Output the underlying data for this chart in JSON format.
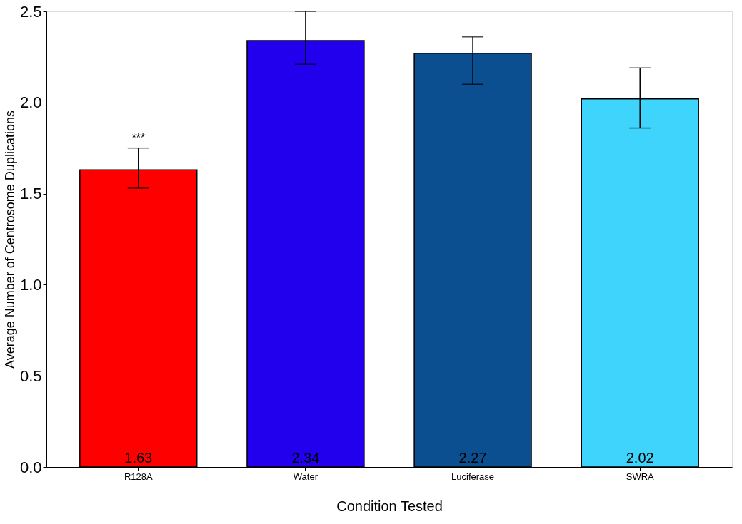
{
  "chart_data": {
    "type": "bar",
    "xlabel": "Condition Tested",
    "ylabel": "Average Number of Centrosome Duplications",
    "categories": [
      "R128A",
      "Water",
      "Luciferase",
      "SWRA"
    ],
    "values": [
      1.63,
      2.34,
      2.27,
      2.02
    ],
    "colors": [
      "#ff0000",
      "#2200ee",
      "#0b4f91",
      "#3fd4fb"
    ],
    "errors": [
      [
        1.53,
        1.75
      ],
      [
        2.21,
        2.5
      ],
      [
        2.1,
        2.36
      ],
      [
        1.86,
        2.19
      ]
    ],
    "data_labels": true,
    "annotations": [
      {
        "text": "***",
        "x": "R128A",
        "y": 1.75
      }
    ],
    "ylim": [
      0,
      2.5
    ],
    "yticks": [
      {
        "value": 0,
        "label": "0.0"
      },
      0.5,
      {
        "value": 1,
        "label": "1.0"
      },
      1.5,
      {
        "value": 2,
        "label": "2.0"
      },
      2.5
    ],
    "grid": false
  }
}
